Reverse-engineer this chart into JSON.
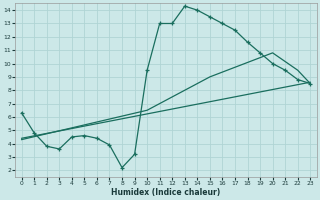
{
  "xlabel": "Humidex (Indice chaleur)",
  "bg_color": "#cce8e8",
  "grid_color": "#b0d4d4",
  "line_color": "#1a6e5e",
  "xlim": [
    -0.5,
    23.5
  ],
  "ylim": [
    1.5,
    14.5
  ],
  "xticks": [
    0,
    1,
    2,
    3,
    4,
    5,
    6,
    7,
    8,
    9,
    10,
    11,
    12,
    13,
    14,
    15,
    16,
    17,
    18,
    19,
    20,
    21,
    22,
    23
  ],
  "yticks": [
    2,
    3,
    4,
    5,
    6,
    7,
    8,
    9,
    10,
    11,
    12,
    13,
    14
  ],
  "line1_x": [
    0,
    1,
    2,
    3,
    4,
    5,
    6,
    7,
    8,
    9,
    10,
    11,
    12,
    13,
    14,
    15,
    16,
    17,
    18,
    19,
    20,
    21,
    22,
    23
  ],
  "line1_y": [
    6.3,
    4.8,
    3.8,
    3.6,
    4.5,
    4.6,
    4.4,
    3.9,
    2.2,
    3.2,
    9.5,
    13.0,
    13.0,
    14.3,
    14.0,
    13.5,
    13.0,
    12.5,
    11.6,
    10.8,
    10.0,
    9.5,
    8.8,
    8.5
  ],
  "line2_x": [
    0,
    23
  ],
  "line2_y": [
    4.4,
    8.6
  ],
  "line3_x": [
    0,
    10,
    15,
    20,
    22,
    23
  ],
  "line3_y": [
    4.3,
    6.5,
    9.0,
    10.8,
    9.5,
    8.5
  ]
}
